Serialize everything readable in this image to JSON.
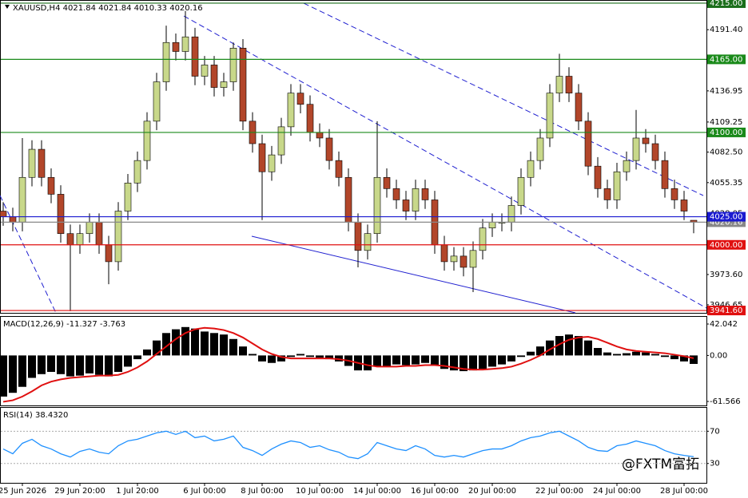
{
  "chart_data": [
    {
      "type": "candlestick",
      "title": "XAUUSD,H4  4021.84 4021.84 4010.33 4020.16",
      "watermark": "@FXTM富拓",
      "categories": [
        null,
        null,
        "25 Jun 2026",
        null,
        null,
        null,
        null,
        null,
        "29 Jun 20:00",
        null,
        null,
        null,
        null,
        null,
        "1 Jul 20:00",
        null,
        null,
        null,
        null,
        null,
        null,
        "6 Jul 00:00",
        null,
        null,
        null,
        null,
        null,
        "8 Jul 00:00",
        null,
        null,
        null,
        null,
        null,
        "10 Jul 00:00",
        null,
        null,
        null,
        null,
        null,
        "14 Jul 00:00",
        null,
        null,
        null,
        null,
        null,
        "16 Jul 00:00",
        null,
        null,
        null,
        null,
        null,
        "20 Jul 00:00",
        null,
        null,
        null,
        null,
        null,
        null,
        "22 Jul 00:00",
        null,
        null,
        null,
        null,
        null,
        "24 Jul 00:00",
        null,
        null,
        null,
        null,
        null,
        null,
        "28 Jul 00:00",
        null
      ],
      "open": [
        4030,
        4025,
        4020,
        4060,
        4085,
        4060,
        4045,
        4010,
        4000,
        4010,
        4020,
        4000,
        3985,
        4030,
        4055,
        4075,
        4110,
        4145,
        4180,
        4172,
        4185,
        4150,
        4160,
        4140,
        4145,
        4175,
        4110,
        4090,
        4065,
        4080,
        4105,
        4135,
        4125,
        4100,
        4095,
        4075,
        4060,
        4020,
        3995,
        4010,
        4060,
        4050,
        4040,
        4030,
        4050,
        4040,
        4000,
        3985,
        3990,
        3980,
        3995,
        4015,
        4020,
        4020,
        4035,
        4060,
        4075,
        4095,
        4135,
        4150,
        4135,
        4110,
        4070,
        4050,
        4040,
        4065,
        4075,
        4095,
        4090,
        4075,
        4050,
        4040,
        4021.84
      ],
      "high": [
        4038,
        4033,
        4095,
        4093,
        4093,
        4068,
        4053,
        4018,
        4018,
        4028,
        4028,
        4008,
        4038,
        4063,
        4083,
        4118,
        4153,
        4195,
        4188,
        4208,
        4193,
        4168,
        4168,
        4153,
        4180,
        4183,
        4118,
        4098,
        4088,
        4113,
        4143,
        4143,
        4133,
        4108,
        4103,
        4083,
        4068,
        4028,
        4018,
        4110,
        4068,
        4058,
        4048,
        4058,
        4058,
        4048,
        4008,
        3998,
        3998,
        4003,
        4023,
        4028,
        4028,
        4043,
        4068,
        4083,
        4103,
        4143,
        4170,
        4158,
        4143,
        4118,
        4078,
        4058,
        4073,
        4083,
        4120,
        4103,
        4098,
        4083,
        4058,
        4048,
        4021.84
      ],
      "low": [
        4017,
        4012,
        4012,
        4052,
        4052,
        4037,
        4002,
        3941,
        3992,
        4002,
        3992,
        3965,
        3977,
        4022,
        4047,
        4067,
        4102,
        4137,
        4164,
        4164,
        4142,
        4142,
        4132,
        4132,
        4137,
        4102,
        4082,
        4022,
        4057,
        4072,
        4097,
        4117,
        4092,
        4087,
        4067,
        4052,
        4012,
        3980,
        3987,
        4002,
        4042,
        4032,
        4022,
        4022,
        4032,
        3992,
        3977,
        3977,
        3972,
        3958,
        3987,
        4007,
        4012,
        4012,
        4027,
        4052,
        4067,
        4087,
        4127,
        4127,
        4102,
        4062,
        4042,
        4032,
        4032,
        4057,
        4067,
        4082,
        4067,
        4042,
        4032,
        4022,
        4010.33
      ],
      "close": [
        4025,
        4020,
        4060,
        4085,
        4060,
        4045,
        4010,
        4000,
        4010,
        4020,
        4000,
        3985,
        4030,
        4055,
        4075,
        4110,
        4145,
        4180,
        4172,
        4185,
        4150,
        4160,
        4140,
        4145,
        4175,
        4110,
        4090,
        4065,
        4080,
        4105,
        4135,
        4125,
        4100,
        4095,
        4075,
        4060,
        4020,
        3995,
        4010,
        4060,
        4050,
        4040,
        4030,
        4050,
        4040,
        4000,
        3985,
        3990,
        3980,
        3995,
        4015,
        4020,
        4020,
        4035,
        4060,
        4075,
        4095,
        4135,
        4150,
        4135,
        4110,
        4070,
        4050,
        4040,
        4065,
        4075,
        4095,
        4090,
        4075,
        4050,
        4040,
        4030,
        4020.16
      ],
      "up_color": "#c8d88a",
      "down_color": "#b2462a",
      "ylim": [
        3939.5,
        4217.8
      ],
      "yticks": [
        {
          "value": 4191.4,
          "label": "4191.40"
        },
        {
          "value": 4136.95,
          "label": "4136.95"
        },
        {
          "value": 4109.25,
          "label": "4109.25"
        },
        {
          "value": 4082.5,
          "label": "4082.50"
        },
        {
          "value": 4055.35,
          "label": "4055.35"
        },
        {
          "value": 4028.05,
          "label": "4028.05"
        },
        {
          "value": 3973.6,
          "label": "3973.60"
        },
        {
          "value": 3946.65,
          "label": "3946.65"
        }
      ],
      "levels": [
        {
          "value": 4215,
          "label": "4215.00",
          "color": "#1a6e1a"
        },
        {
          "value": 4165,
          "label": "4165.00",
          "color": "#1a8a1a"
        },
        {
          "value": 4100,
          "label": "4100.00",
          "color": "#1a8a1a"
        },
        {
          "value": 4020.16,
          "label": "4020.16",
          "color": "#888888"
        },
        {
          "value": 4025,
          "label": "4025.00",
          "color": "#1a1ad0"
        },
        {
          "value": 4000,
          "label": "4000.00",
          "color": "#e01010"
        },
        {
          "value": 3941.6,
          "label": "3941.60",
          "color": "#e01010"
        }
      ]
    },
    {
      "type": "macd",
      "title": "MACD(12,26,9) -11.327 -3.763",
      "values": [
        -55,
        -50,
        -42,
        -30,
        -25,
        -22,
        -25,
        -28,
        -27,
        -24,
        -26,
        -28,
        -22,
        -15,
        -5,
        8,
        20,
        30,
        35,
        38,
        36,
        32,
        30,
        28,
        22,
        12,
        2,
        -8,
        -10,
        -8,
        -2,
        2,
        -2,
        -3,
        -5,
        -8,
        -14,
        -20,
        -20,
        -15,
        -14,
        -12,
        -13,
        -12,
        -10,
        -14,
        -18,
        -20,
        -21,
        -20,
        -18,
        -15,
        -12,
        -8,
        -2,
        5,
        12,
        20,
        26,
        28,
        26,
        20,
        10,
        4,
        2,
        3,
        5,
        4,
        2,
        -2,
        -5,
        -8,
        -11.327
      ],
      "signal": [
        -62,
        -60,
        -55,
        -48,
        -40,
        -35,
        -32,
        -30,
        -29,
        -28,
        -27,
        -27,
        -26,
        -22,
        -16,
        -8,
        2,
        12,
        22,
        30,
        35,
        37,
        36,
        34,
        30,
        24,
        16,
        8,
        2,
        -2,
        -4,
        -4,
        -4,
        -4,
        -4,
        -5,
        -7,
        -10,
        -13,
        -15,
        -15,
        -15,
        -14,
        -14,
        -13,
        -13,
        -14,
        -16,
        -18,
        -19,
        -19,
        -18,
        -17,
        -15,
        -11,
        -6,
        0,
        8,
        15,
        21,
        24,
        25,
        22,
        17,
        12,
        8,
        6,
        5,
        4,
        3,
        1,
        -1,
        -3.763
      ],
      "color": "#000000",
      "signal_color": "#e01010",
      "ylim": [
        -65.8,
        50.6
      ],
      "yticks": [
        {
          "value": 42.042,
          "label": "42.042"
        },
        {
          "value": 0,
          "label": "0.00"
        },
        {
          "value": -61.566,
          "label": "-61.566"
        }
      ]
    },
    {
      "type": "line",
      "title": "RSI(14) 38.4320",
      "values": [
        48,
        42,
        55,
        60,
        52,
        48,
        42,
        38,
        45,
        48,
        44,
        42,
        52,
        58,
        60,
        64,
        68,
        70,
        66,
        70,
        62,
        64,
        58,
        60,
        64,
        50,
        46,
        40,
        48,
        54,
        58,
        56,
        50,
        52,
        47,
        44,
        38,
        36,
        42,
        56,
        52,
        48,
        46,
        52,
        48,
        40,
        38,
        40,
        38,
        42,
        46,
        48,
        48,
        52,
        58,
        62,
        64,
        68,
        70,
        64,
        58,
        50,
        46,
        45,
        52,
        54,
        58,
        55,
        52,
        46,
        42,
        40,
        38.432
      ],
      "color": "#1e90ff",
      "ylim": [
        6,
        100
      ],
      "yticks": [
        70,
        30
      ],
      "grid": true
    }
  ]
}
